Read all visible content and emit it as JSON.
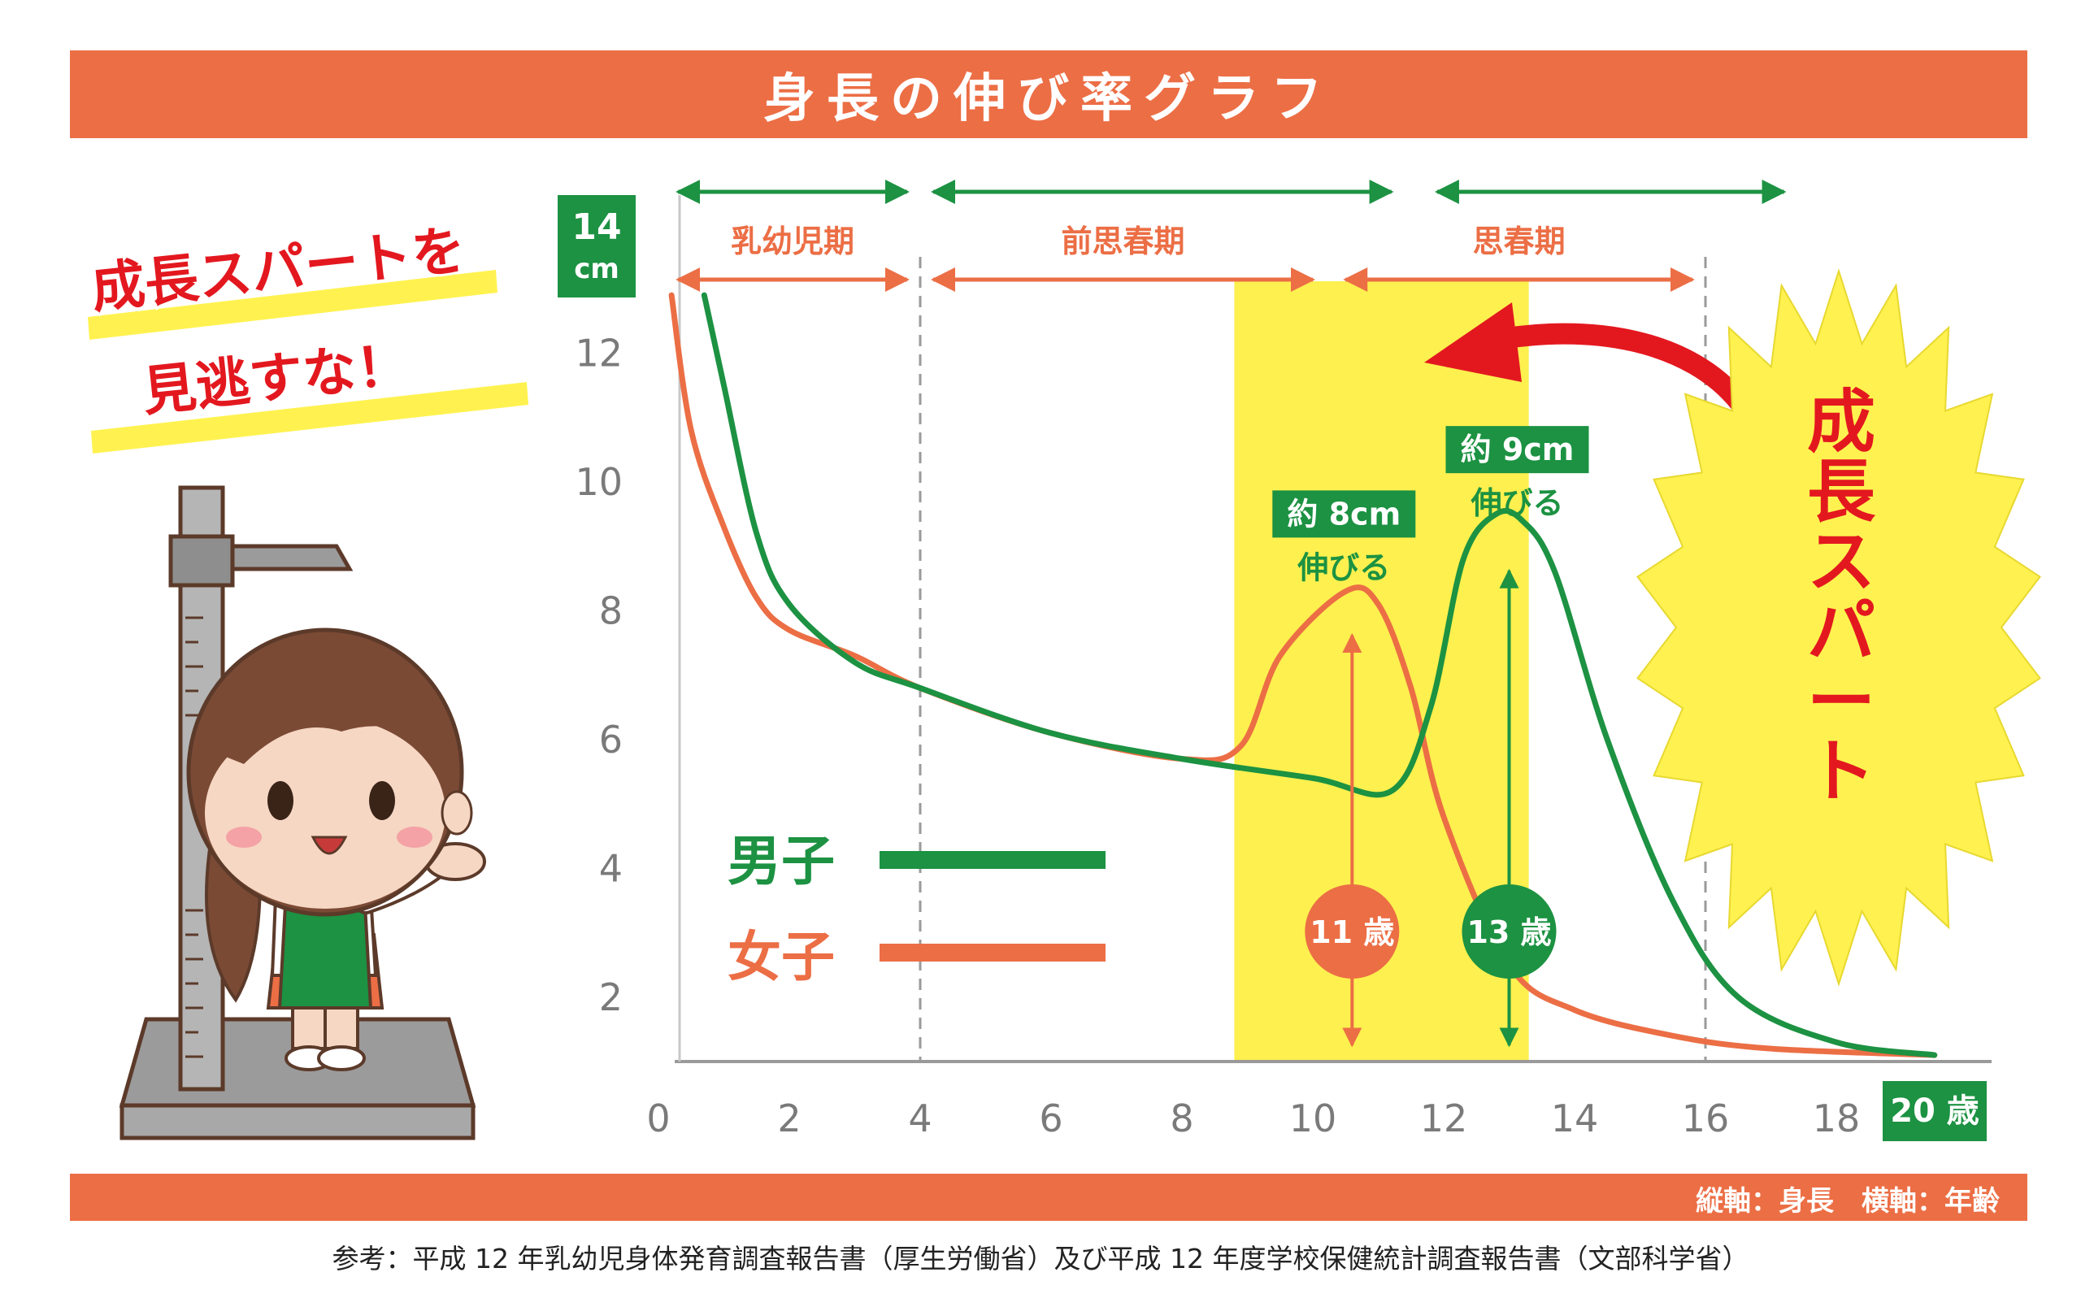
{
  "header": {
    "title": "身長の伸び率グラフ"
  },
  "slogan": {
    "line1": "成長スパートを",
    "line2": "見逃すな！"
  },
  "burst": {
    "text": "成長スパート"
  },
  "footer": {
    "axis_note": "縦軸：身長　横軸：年齢",
    "source": "参考：平成 12 年乳幼児身体発育調査報告書（厚生労働省）及び平成 12 年度学校保健統計調査報告書（文部科学省）"
  },
  "colors": {
    "boys": "#1c9242",
    "girls": "#ec6e45",
    "highlight": "#fdf04f",
    "burst": "#fff250",
    "arrow": "#e3181f",
    "axis": "#9a9a9a"
  },
  "chart_data": {
    "type": "line",
    "title": "身長の伸び率グラフ",
    "xlabel": "歳",
    "ylabel": "cm",
    "x_unit": "20 歳",
    "y_unit": "14 cm",
    "xlim": [
      0,
      20
    ],
    "ylim": [
      1,
      14
    ],
    "x_ticks": [
      0,
      2,
      4,
      6,
      8,
      10,
      12,
      14,
      16,
      18
    ],
    "y_ticks": [
      2,
      4,
      6,
      8,
      10,
      12
    ],
    "grid": false,
    "dashed_lines_x": [
      4,
      16
    ],
    "highlight_range_x": [
      8.8,
      13.3
    ],
    "periods": [
      {
        "name": "乳幼児期",
        "start": 0.3,
        "end": 3.8
      },
      {
        "name": "前思春期",
        "start": 4.2,
        "end": 10.0
      },
      {
        "name": "思春期",
        "start": 10.5,
        "end": 15.8
      }
    ],
    "spans_top": [
      {
        "start": 0.3,
        "end": 3.8
      },
      {
        "start": 4.2,
        "end": 11.2
      },
      {
        "start": 11.9,
        "end": 17.2
      }
    ],
    "legend": [
      {
        "name": "男子"
      },
      {
        "name": "女子"
      }
    ],
    "series": [
      {
        "name": "男子",
        "x": [
          0.7,
          1.0,
          1.5,
          2.0,
          3.0,
          4.0,
          6.0,
          8.0,
          10.0,
          11.2,
          11.8,
          12.3,
          12.8,
          13.2,
          13.7,
          14.5,
          15.5,
          16.5,
          18.0,
          19.5
        ],
        "values": [
          12.9,
          11.5,
          9.2,
          8.1,
          7.2,
          6.8,
          6.1,
          5.7,
          5.4,
          5.2,
          6.5,
          8.8,
          9.5,
          9.4,
          8.6,
          6.0,
          3.5,
          2.0,
          1.3,
          1.1
        ]
      },
      {
        "name": "女子",
        "x": [
          0.2,
          0.5,
          1.0,
          1.5,
          2.0,
          3.0,
          4.0,
          6.0,
          8.0,
          8.9,
          9.5,
          10.5,
          11.0,
          11.5,
          12.0,
          13.0,
          14.0,
          15.5,
          17.0,
          19.5
        ],
        "values": [
          12.9,
          10.8,
          9.3,
          8.2,
          7.7,
          7.3,
          6.8,
          6.1,
          5.7,
          5.9,
          7.3,
          8.3,
          8.1,
          6.8,
          4.8,
          2.5,
          1.8,
          1.4,
          1.2,
          1.1
        ]
      }
    ],
    "annotations": [
      {
        "series": "女子",
        "age_label": "11 歳",
        "peak": "約 8cm",
        "peak_sub": "伸びる",
        "x": 10.6,
        "peak_value": 8
      },
      {
        "series": "男子",
        "age_label": "13 歳",
        "peak": "約 9cm",
        "peak_sub": "伸びる",
        "x": 13.0,
        "peak_value": 9
      }
    ]
  }
}
